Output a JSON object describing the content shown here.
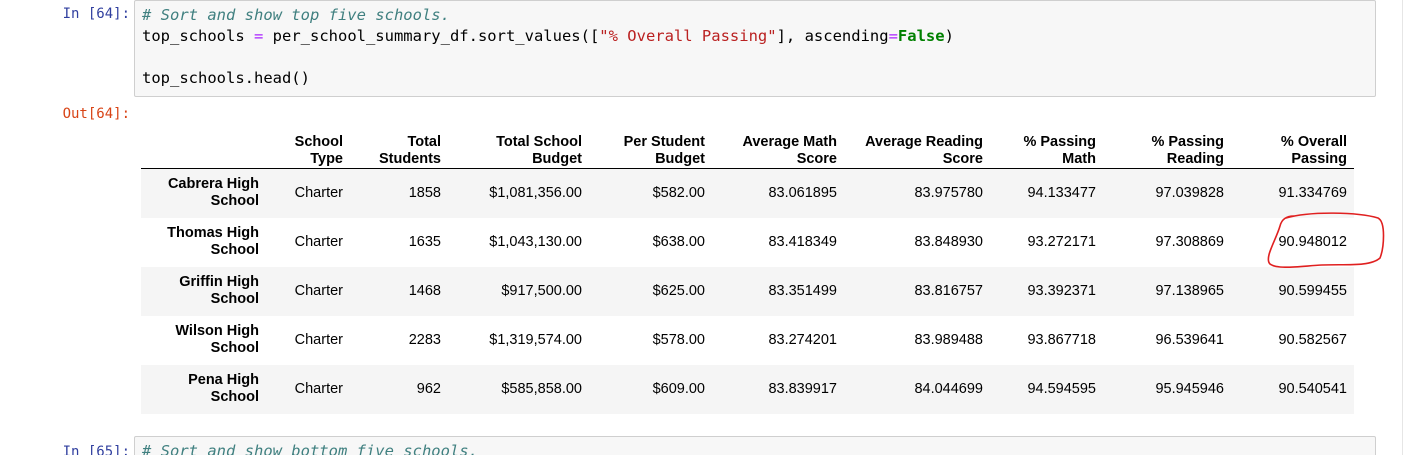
{
  "cells": [
    {
      "in_prompt": "In [64]:",
      "code": {
        "comment": "# Sort and show top five schools.",
        "line2_var": "top_schools ",
        "line2_eq": "=",
        "line2_mid": " per_school_summary_df.sort_values([",
        "line2_str": "\"% Overall Passing\"",
        "line2_mid2": "], ascending",
        "line2_eq2": "=",
        "line2_kw": "False",
        "line2_end": ")",
        "line3": "top_schools.head()"
      },
      "out_prompt": "Out[64]:"
    },
    {
      "in_prompt": "In [65]:",
      "code": {
        "comment": "# Sort and show bottom five schools."
      }
    }
  ],
  "table": {
    "columns": [
      [
        "School",
        "Type"
      ],
      [
        "Total",
        "Students"
      ],
      [
        "Total School",
        "Budget"
      ],
      [
        "Per Student",
        "Budget"
      ],
      [
        "Average Math",
        "Score"
      ],
      [
        "Average Reading",
        "Score"
      ],
      [
        "% Passing",
        "Math"
      ],
      [
        "% Passing",
        "Reading"
      ],
      [
        "% Overall",
        "Passing"
      ]
    ],
    "rows": [
      {
        "index": [
          "Cabrera High",
          "School"
        ],
        "values": [
          "Charter",
          "1858",
          "$1,081,356.00",
          "$582.00",
          "83.061895",
          "83.975780",
          "94.133477",
          "97.039828",
          "91.334769"
        ]
      },
      {
        "index": [
          "Thomas High",
          "School"
        ],
        "values": [
          "Charter",
          "1635",
          "$1,043,130.00",
          "$638.00",
          "83.418349",
          "83.848930",
          "93.272171",
          "97.308869",
          "90.948012"
        ]
      },
      {
        "index": [
          "Griffin High",
          "School"
        ],
        "values": [
          "Charter",
          "1468",
          "$917,500.00",
          "$625.00",
          "83.351499",
          "83.816757",
          "93.392371",
          "97.138965",
          "90.599455"
        ]
      },
      {
        "index": [
          "Wilson High",
          "School"
        ],
        "values": [
          "Charter",
          "2283",
          "$1,319,574.00",
          "$578.00",
          "83.274201",
          "83.989488",
          "93.867718",
          "96.539641",
          "90.582567"
        ]
      },
      {
        "index": [
          "Pena High",
          "School"
        ],
        "values": [
          "Charter",
          "962",
          "$585,858.00",
          "$609.00",
          "83.839917",
          "84.044699",
          "94.594595",
          "95.945946",
          "90.540541"
        ]
      }
    ]
  },
  "colors": {
    "prompt_in": "#303f9f",
    "prompt_out": "#d84315",
    "annotation": "#e02020"
  }
}
